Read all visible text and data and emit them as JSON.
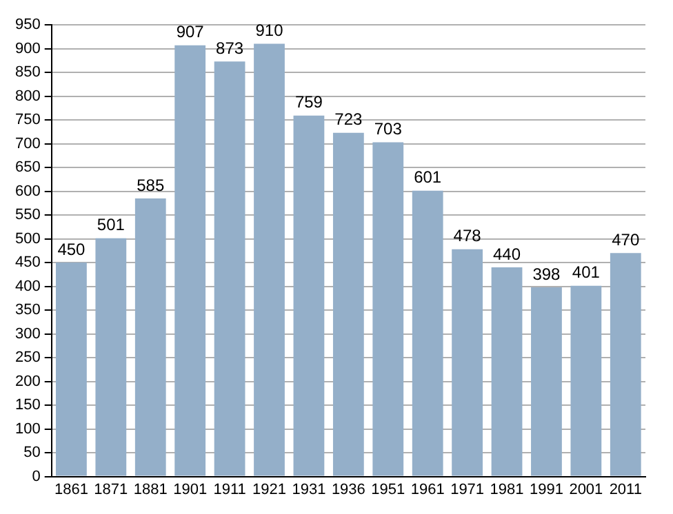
{
  "chart_data": {
    "type": "bar",
    "categories": [
      "1861",
      "1871",
      "1881",
      "1901",
      "1911",
      "1921",
      "1931",
      "1936",
      "1951",
      "1961",
      "1971",
      "1981",
      "1991",
      "2001",
      "2011"
    ],
    "values": [
      450,
      501,
      585,
      907,
      873,
      910,
      759,
      723,
      703,
      601,
      478,
      440,
      398,
      401,
      470
    ],
    "color": "#94afc9",
    "ylim": [
      0,
      950
    ],
    "yticks": [
      0,
      50,
      100,
      150,
      200,
      250,
      300,
      350,
      400,
      450,
      500,
      550,
      600,
      650,
      700,
      750,
      800,
      850,
      900,
      950
    ],
    "grid": "y",
    "data_labels": true
  }
}
